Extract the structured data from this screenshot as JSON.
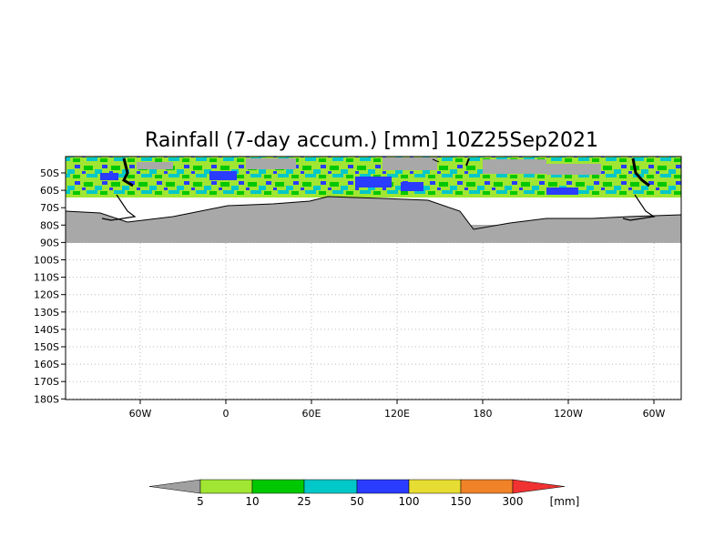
{
  "title": "Rainfall (7-day accum.) [mm] 10Z25Sep2021",
  "y_ticks": [
    "50S",
    "60S",
    "70S",
    "80S",
    "90S",
    "100S",
    "110S",
    "120S",
    "130S",
    "140S",
    "150S",
    "160S",
    "170S",
    "180S"
  ],
  "x_ticks": [
    "60W",
    "0",
    "60E",
    "120E",
    "180",
    "120W",
    "60W"
  ],
  "colorbar": {
    "labels": [
      "5",
      "10",
      "25",
      "50",
      "100",
      "150",
      "300"
    ],
    "unit": "[mm]",
    "colors": [
      "#a0a0a0",
      "#a0e632",
      "#00c800",
      "#00c8c8",
      "#2a3cff",
      "#e6dc32",
      "#f08228",
      "#f03232"
    ]
  },
  "map": {
    "land_color": "#a8a8a8",
    "coast_color": "#000000",
    "grid_color": "#c8c8c8"
  }
}
